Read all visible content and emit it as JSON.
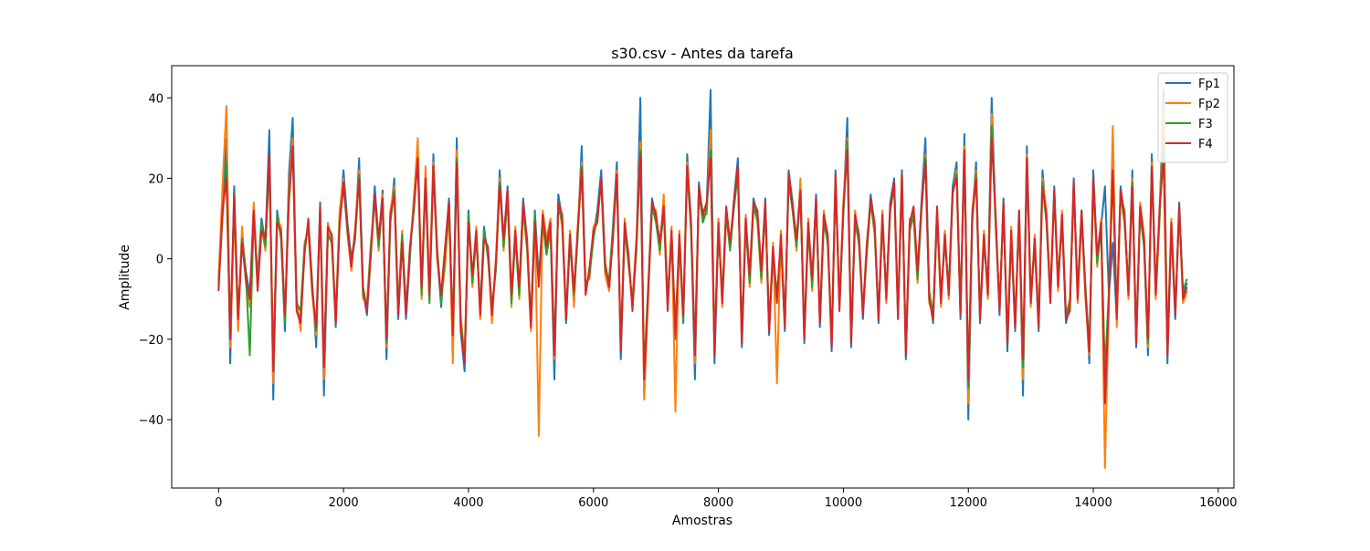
{
  "chart_data": {
    "type": "line",
    "title": "s30.csv - Antes da tarefa",
    "xlabel": "Amostras",
    "ylabel": "Amplitude",
    "xlim": [
      -750,
      16250
    ],
    "ylim": [
      -57,
      48
    ],
    "x_ticks": [
      0,
      2000,
      4000,
      6000,
      8000,
      10000,
      12000,
      14000,
      16000
    ],
    "x_tick_labels": [
      "0",
      "2000",
      "4000",
      "6000",
      "8000",
      "10000",
      "12000",
      "14000",
      "16000"
    ],
    "y_ticks": [
      -40,
      -20,
      0,
      20,
      40
    ],
    "y_tick_labels": [
      "−40",
      "−20",
      "0",
      "20",
      "40"
    ],
    "grid": false,
    "legend_position": "top-right",
    "n_samples": 15500,
    "x_step": 50,
    "series": [
      {
        "name": "Fp1",
        "color": "#1f77b4",
        "values": [
          -5,
          14,
          30,
          -26,
          18,
          -16,
          6,
          -3,
          -9,
          13,
          -5,
          10,
          4,
          32,
          -35,
          12,
          6,
          -18,
          21,
          35,
          -12,
          -15,
          2,
          9,
          -6,
          -22,
          14,
          -34,
          7,
          5,
          -17,
          10,
          22,
          9,
          0,
          6,
          25,
          -8,
          -14,
          2,
          18,
          4,
          17,
          -25,
          10,
          20,
          -15,
          5,
          -15,
          0,
          15,
          28,
          -8,
          21,
          -10,
          26,
          1,
          -12,
          2,
          15,
          -20,
          30,
          -18,
          -28,
          12,
          -5,
          6,
          -13,
          8,
          0,
          -13,
          -2,
          22,
          4,
          18,
          -10,
          6,
          -8,
          15,
          4,
          -16,
          12,
          -5,
          10,
          2,
          8,
          -30,
          16,
          10,
          -16,
          5,
          -10,
          7,
          28,
          -8,
          -3,
          6,
          12,
          22,
          -2,
          -6,
          8,
          24,
          -25,
          8,
          0,
          -12,
          3,
          40,
          -34,
          -8,
          15,
          10,
          3,
          14,
          -12,
          6,
          -20,
          5,
          -16,
          26,
          8,
          -30,
          19,
          10,
          13,
          42,
          -26,
          8,
          -10,
          12,
          3,
          15,
          25,
          -22,
          9,
          -5,
          15,
          11,
          -4,
          15,
          -19,
          2,
          -10,
          5,
          -18,
          22,
          14,
          4,
          18,
          -21,
          8,
          -6,
          16,
          -17,
          10,
          5,
          -23,
          22,
          -12,
          12,
          35,
          -22,
          10,
          5,
          -15,
          2,
          16,
          8,
          -16,
          10,
          -9,
          14,
          20,
          -14,
          22,
          -25,
          8,
          12,
          -4,
          14,
          30,
          -9,
          -16,
          12,
          -10,
          5,
          -8,
          18,
          24,
          -15,
          31,
          -40,
          10,
          24,
          -16,
          5,
          -8,
          40,
          10,
          -14,
          15,
          -23,
          6,
          -18,
          12,
          -34,
          28,
          -10,
          4,
          -18,
          22,
          10,
          -10,
          18,
          -6,
          10,
          -16,
          -12,
          20,
          -9,
          12,
          -8,
          -26,
          22,
          0,
          8,
          18,
          -9,
          4,
          -15,
          18,
          10,
          -8,
          22,
          -22,
          12,
          4,
          -24,
          26,
          -8,
          12,
          42,
          -26,
          8,
          -15,
          14,
          -9,
          -6
        ]
      },
      {
        "name": "Fp2",
        "color": "#ff7f0e",
        "values": [
          -6,
          18,
          38,
          -22,
          12,
          -18,
          8,
          -6,
          -12,
          14,
          -6,
          8,
          2,
          26,
          -31,
          10,
          8,
          -15,
          18,
          30,
          -10,
          -18,
          4,
          7,
          -9,
          -19,
          12,
          -30,
          9,
          3,
          -15,
          12,
          20,
          6,
          -3,
          8,
          22,
          -10,
          -11,
          4,
          15,
          2,
          16,
          -22,
          12,
          18,
          -12,
          7,
          -13,
          2,
          14,
          30,
          -10,
          23,
          -8,
          24,
          3,
          -10,
          -2,
          12,
          -26,
          27,
          -14,
          -24,
          10,
          -7,
          8,
          -15,
          6,
          2,
          -16,
          0,
          20,
          2,
          16,
          -12,
          8,
          -10,
          12,
          2,
          -18,
          10,
          -44,
          12,
          5,
          10,
          -25,
          14,
          8,
          -14,
          7,
          -12,
          9,
          24,
          -6,
          -5,
          8,
          10,
          19,
          -4,
          -8,
          6,
          22,
          -22,
          10,
          -2,
          -10,
          5,
          29,
          -35,
          -10,
          13,
          12,
          1,
          16,
          -10,
          8,
          -38,
          7,
          -14,
          24,
          10,
          -26,
          16,
          12,
          11,
          32,
          -22,
          10,
          -12,
          10,
          5,
          13,
          22,
          -20,
          11,
          -7,
          13,
          9,
          -6,
          13,
          -17,
          4,
          -31,
          7,
          -16,
          20,
          12,
          2,
          20,
          -19,
          10,
          -8,
          14,
          -15,
          12,
          3,
          -20,
          20,
          -10,
          14,
          30,
          -20,
          12,
          3,
          -13,
          4,
          14,
          6,
          -14,
          12,
          -11,
          12,
          18,
          -12,
          20,
          -22,
          10,
          10,
          -6,
          12,
          26,
          -11,
          -14,
          10,
          -12,
          7,
          -10,
          16,
          22,
          -13,
          28,
          -36,
          12,
          22,
          -14,
          7,
          -10,
          36,
          8,
          -12,
          13,
          -20,
          8,
          -16,
          10,
          -30,
          26,
          -12,
          6,
          -16,
          20,
          12,
          -8,
          16,
          -8,
          12,
          -14,
          -10,
          18,
          -11,
          10,
          -10,
          -24,
          20,
          -2,
          10,
          -52,
          -11,
          33,
          -17,
          16,
          12,
          -10,
          20,
          -20,
          14,
          6,
          -22,
          24,
          -10,
          10,
          38,
          -22,
          10,
          -13,
          12,
          -11,
          -8
        ]
      },
      {
        "name": "F3",
        "color": "#2ca02c",
        "values": [
          -7,
          10,
          24,
          -18,
          14,
          -14,
          5,
          -4,
          -24,
          11,
          -7,
          9,
          3,
          24,
          -26,
          11,
          5,
          -16,
          16,
          27,
          -11,
          -13,
          3,
          8,
          -7,
          -18,
          12,
          -26,
          6,
          4,
          -14,
          9,
          18,
          7,
          -1,
          5,
          21,
          -9,
          -12,
          3,
          15,
          3,
          14,
          -21,
          9,
          17,
          -13,
          6,
          -12,
          1,
          13,
          24,
          -9,
          19,
          -11,
          22,
          2,
          -11,
          1,
          13,
          -18,
          25,
          -16,
          -25,
          11,
          -6,
          5,
          -12,
          7,
          1,
          -12,
          -3,
          19,
          3,
          15,
          -11,
          5,
          -9,
          13,
          3,
          -15,
          11,
          -6,
          9,
          1,
          7,
          -22,
          13,
          9,
          -13,
          4,
          -9,
          6,
          23,
          -7,
          -4,
          5,
          11,
          19,
          -3,
          -5,
          7,
          20,
          -21,
          7,
          -1,
          -11,
          2,
          27,
          -28,
          -7,
          13,
          9,
          2,
          12,
          -11,
          5,
          -17,
          4,
          -15,
          22,
          7,
          -22,
          17,
          9,
          12,
          27,
          -22,
          7,
          -9,
          11,
          2,
          13,
          21,
          -19,
          8,
          -6,
          13,
          10,
          -5,
          13,
          -16,
          1,
          -9,
          4,
          -16,
          19,
          12,
          3,
          16,
          -19,
          7,
          -7,
          14,
          -15,
          9,
          4,
          -20,
          19,
          -11,
          11,
          29,
          -19,
          9,
          4,
          -13,
          1,
          14,
          7,
          -14,
          9,
          -8,
          12,
          18,
          -13,
          19,
          -22,
          7,
          11,
          -5,
          12,
          25,
          -8,
          -14,
          11,
          -9,
          4,
          -7,
          16,
          21,
          -13,
          26,
          -32,
          9,
          21,
          -14,
          4,
          -7,
          33,
          9,
          -12,
          13,
          -20,
          5,
          -16,
          11,
          -27,
          24,
          -9,
          3,
          -16,
          19,
          9,
          -9,
          16,
          -5,
          9,
          -14,
          -11,
          18,
          -8,
          11,
          -7,
          -22,
          19,
          -1,
          7,
          -28,
          -8,
          22,
          -14,
          16,
          9,
          -7,
          19,
          -19,
          11,
          3,
          -21,
          22,
          -7,
          11,
          30,
          -22,
          7,
          -13,
          12,
          -8,
          -5
        ]
      },
      {
        "name": "F4",
        "color": "#d62728",
        "values": [
          -8,
          12,
          20,
          -20,
          16,
          -15,
          4,
          -5,
          -10,
          12,
          -8,
          7,
          5,
          26,
          -28,
          9,
          7,
          -14,
          14,
          28,
          -13,
          -16,
          1,
          10,
          -8,
          -17,
          13,
          -27,
          8,
          6,
          -16,
          8,
          19,
          8,
          -2,
          7,
          20,
          -7,
          -13,
          1,
          16,
          5,
          15,
          -20,
          11,
          16,
          -14,
          4,
          -14,
          3,
          12,
          25,
          -7,
          20,
          -9,
          23,
          0,
          -9,
          3,
          14,
          -19,
          24,
          -17,
          -26,
          9,
          -4,
          7,
          -14,
          5,
          3,
          -14,
          -1,
          18,
          5,
          17,
          -9,
          7,
          -7,
          14,
          5,
          -17,
          9,
          -7,
          11,
          3,
          9,
          -24,
          14,
          11,
          -15,
          6,
          -8,
          8,
          22,
          -9,
          -2,
          7,
          9,
          20,
          -1,
          -7,
          5,
          21,
          -23,
          9,
          1,
          -13,
          4,
          26,
          -30,
          -9,
          14,
          11,
          4,
          13,
          -13,
          7,
          -19,
          6,
          -14,
          23,
          9,
          -24,
          18,
          11,
          14,
          25,
          -24,
          9,
          -11,
          13,
          4,
          14,
          23,
          -21,
          10,
          -4,
          14,
          12,
          -3,
          14,
          -18,
          3,
          -11,
          6,
          -17,
          21,
          13,
          5,
          17,
          -20,
          9,
          -5,
          15,
          -16,
          11,
          6,
          -22,
          21,
          -13,
          13,
          27,
          -21,
          11,
          6,
          -14,
          3,
          15,
          9,
          -15,
          11,
          -10,
          13,
          19,
          -15,
          21,
          -24,
          9,
          13,
          -3,
          13,
          24,
          -10,
          -15,
          13,
          -11,
          6,
          -9,
          17,
          20,
          -14,
          27,
          -30,
          11,
          20,
          -15,
          6,
          -9,
          30,
          11,
          -13,
          14,
          -21,
          7,
          -17,
          12,
          -25,
          25,
          -11,
          5,
          -17,
          18,
          11,
          -11,
          17,
          -7,
          11,
          -15,
          -13,
          19,
          -10,
          12,
          -9,
          -23,
          20,
          1,
          9,
          -36,
          -10,
          22,
          -15,
          17,
          11,
          -9,
          18,
          -21,
          13,
          5,
          -20,
          23,
          -9,
          13,
          25,
          -24,
          9,
          -14,
          13,
          -10,
          -7
        ]
      }
    ]
  }
}
